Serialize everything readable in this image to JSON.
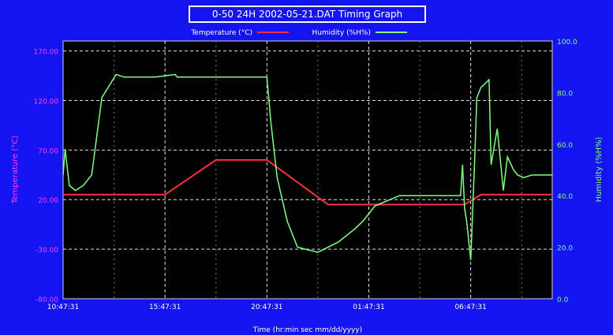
{
  "chart_data": {
    "type": "line",
    "title": "0-50 24H 2002-05-21.DAT Timing Graph",
    "xlabel": "Time (hr:min sec mm/dd/yyyy)",
    "y_left_label": "Temperature (°C)",
    "y_right_label": "Humidity (%H%)",
    "x_range": [
      0,
      24
    ],
    "y_left_range": [
      -80,
      180
    ],
    "y_right_range": [
      0,
      100
    ],
    "x_tick_labels": [
      "10:47:31",
      "15:47:31",
      "20:47:31",
      "01:47:31",
      "06:47:31"
    ],
    "x_tick_values": [
      0,
      5,
      10,
      15,
      20
    ],
    "y_left_ticks": [
      "170.00",
      "120.00",
      "70.00",
      "20.00",
      "-30.00",
      "-80.00"
    ],
    "y_left_tick_values": [
      170,
      120,
      70,
      20,
      -30,
      -80
    ],
    "y_right_ticks": [
      "100.0",
      "80.0",
      "60.0",
      "40.0",
      "20.0",
      "0.0"
    ],
    "y_right_tick_values": [
      100,
      80,
      60,
      40,
      20,
      0
    ],
    "grid": true,
    "legend_position": "top",
    "series": [
      {
        "name": "Temperature (°C)",
        "axis": "left",
        "color": "#ff3040",
        "x": [
          0,
          5,
          7.5,
          10,
          13,
          15,
          19.7,
          20.5,
          24
        ],
        "y": [
          25,
          25,
          60,
          60,
          15,
          15,
          15,
          25,
          25
        ]
      },
      {
        "name": "Humidity (%H%)",
        "axis": "right",
        "color": "#80ff80",
        "x": [
          0,
          0.1,
          0.3,
          0.6,
          1.0,
          1.4,
          1.9,
          2.6,
          3.0,
          4.5,
          5.5,
          5.6,
          6.0,
          10.0,
          10.2,
          10.5,
          11.0,
          11.5,
          12.5,
          13.5,
          14.3,
          14.7,
          15.0,
          15.3,
          15.6,
          16.5,
          17.5,
          19.5,
          19.6,
          19.7,
          19.8,
          20.0,
          20.2,
          20.3,
          20.5,
          20.9,
          21.0,
          21.3,
          21.6,
          21.8,
          22.1,
          22.3,
          22.6,
          23.0,
          24.0
        ],
        "y": [
          48,
          58,
          44,
          42,
          44,
          48,
          78,
          87,
          86,
          86,
          87,
          86,
          86,
          86,
          68,
          47,
          30,
          20,
          18,
          22,
          27,
          30,
          33,
          36,
          37,
          40,
          40,
          40,
          52,
          35,
          30,
          15,
          55,
          78,
          82,
          85,
          52,
          66,
          42,
          55,
          50,
          48,
          47,
          48,
          48
        ]
      }
    ]
  }
}
